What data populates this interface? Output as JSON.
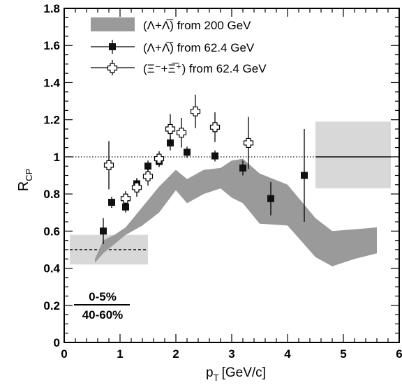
{
  "chart_data": {
    "type": "scatter",
    "xlabel_main": "p",
    "xlabel_sub": "T",
    "xlabel_unit": "[GeV/c]",
    "ylabel_main": "R",
    "ylabel_sub": "CP",
    "xlim": [
      0,
      6
    ],
    "ylim": [
      0,
      1.8
    ],
    "x_ticks": [
      "0",
      "1",
      "2",
      "3",
      "4",
      "5",
      "6"
    ],
    "y_ticks": [
      "0",
      "0.2",
      "0.4",
      "0.6",
      "0.8",
      "1",
      "1.2",
      "1.4",
      "1.6",
      "1.8"
    ],
    "reference_line_y": 1,
    "legend": {
      "placement": "top-left",
      "entries": [
        {
          "label": "(Λ+Λ̅) from 200 GeV",
          "label_text": "(Λ+Λ) from 200 GeV",
          "marker": "gray-band"
        },
        {
          "label": "(Λ+Λ̅) from 62.4 GeV",
          "label_text": "(Λ+Λ) from 62.4 GeV",
          "marker": "filled-square"
        },
        {
          "label": "(Ξ⁻+Ξ̅⁺) from 62.4 GeV",
          "label_text": "(Ξ-+Ξ+) from 62.4 GeV",
          "marker": "open-cross"
        }
      ]
    },
    "centrality_label": {
      "numerator": "0-5%",
      "denominator": "40-60%"
    },
    "band_200GeV": {
      "color": "#9a9a9a",
      "x": [
        0.55,
        0.7,
        0.9,
        1.1,
        1.4,
        1.7,
        2.0,
        2.2,
        2.5,
        2.8,
        3.0,
        3.2,
        3.5,
        4.0,
        4.5,
        4.8,
        5.2,
        5.6
      ],
      "upper": [
        0.45,
        0.55,
        0.58,
        0.62,
        0.73,
        0.84,
        0.93,
        0.88,
        0.93,
        0.94,
        0.98,
        0.99,
        0.91,
        0.85,
        0.67,
        0.6,
        0.61,
        0.62
      ],
      "lower": [
        0.43,
        0.48,
        0.53,
        0.58,
        0.63,
        0.7,
        0.82,
        0.75,
        0.8,
        0.83,
        0.78,
        0.75,
        0.64,
        0.63,
        0.46,
        0.41,
        0.45,
        0.48
      ]
    },
    "lambda_62GeV": [
      {
        "x": 0.7,
        "y": 0.6,
        "err": 0.07
      },
      {
        "x": 0.85,
        "y": 0.755,
        "err": 0.03
      },
      {
        "x": 1.1,
        "y": 0.73,
        "err": 0.03
      },
      {
        "x": 1.3,
        "y": 0.855,
        "err": 0.03
      },
      {
        "x": 1.5,
        "y": 0.95,
        "err": 0.03
      },
      {
        "x": 1.7,
        "y": 0.975,
        "err": 0.03
      },
      {
        "x": 1.9,
        "y": 1.075,
        "err": 0.04
      },
      {
        "x": 2.2,
        "y": 1.025,
        "err": 0.03
      },
      {
        "x": 2.7,
        "y": 1.005,
        "err": 0.03
      },
      {
        "x": 3.2,
        "y": 0.94,
        "err": 0.04
      },
      {
        "x": 3.7,
        "y": 0.775,
        "err": 0.09
      },
      {
        "x": 4.3,
        "y": 0.9,
        "err": 0.25
      }
    ],
    "xi_62GeV": [
      {
        "x": 0.8,
        "y": 0.955,
        "err": 0.13
      },
      {
        "x": 1.1,
        "y": 0.775,
        "err": 0.04
      },
      {
        "x": 1.3,
        "y": 0.835,
        "err": 0.05
      },
      {
        "x": 1.5,
        "y": 0.895,
        "err": 0.05
      },
      {
        "x": 1.7,
        "y": 0.99,
        "err": 0.04
      },
      {
        "x": 1.9,
        "y": 1.15,
        "err": 0.08
      },
      {
        "x": 2.1,
        "y": 1.13,
        "err": 0.08
      },
      {
        "x": 2.35,
        "y": 1.245,
        "err": 0.09
      },
      {
        "x": 2.7,
        "y": 1.16,
        "err": 0.08
      },
      {
        "x": 3.3,
        "y": 1.075,
        "err": 0.14
      }
    ],
    "normalization_boxes": [
      {
        "name": "low-norm-box",
        "x0": 0.1,
        "x1": 1.5,
        "y0": 0.42,
        "y1": 0.58,
        "line_y": 0.5,
        "line_style": "dashed"
      },
      {
        "name": "high-norm-box",
        "x0": 4.5,
        "x1": 5.85,
        "y0": 0.83,
        "y1": 1.19,
        "line_y": 1.0,
        "line_style": "solid"
      }
    ]
  }
}
